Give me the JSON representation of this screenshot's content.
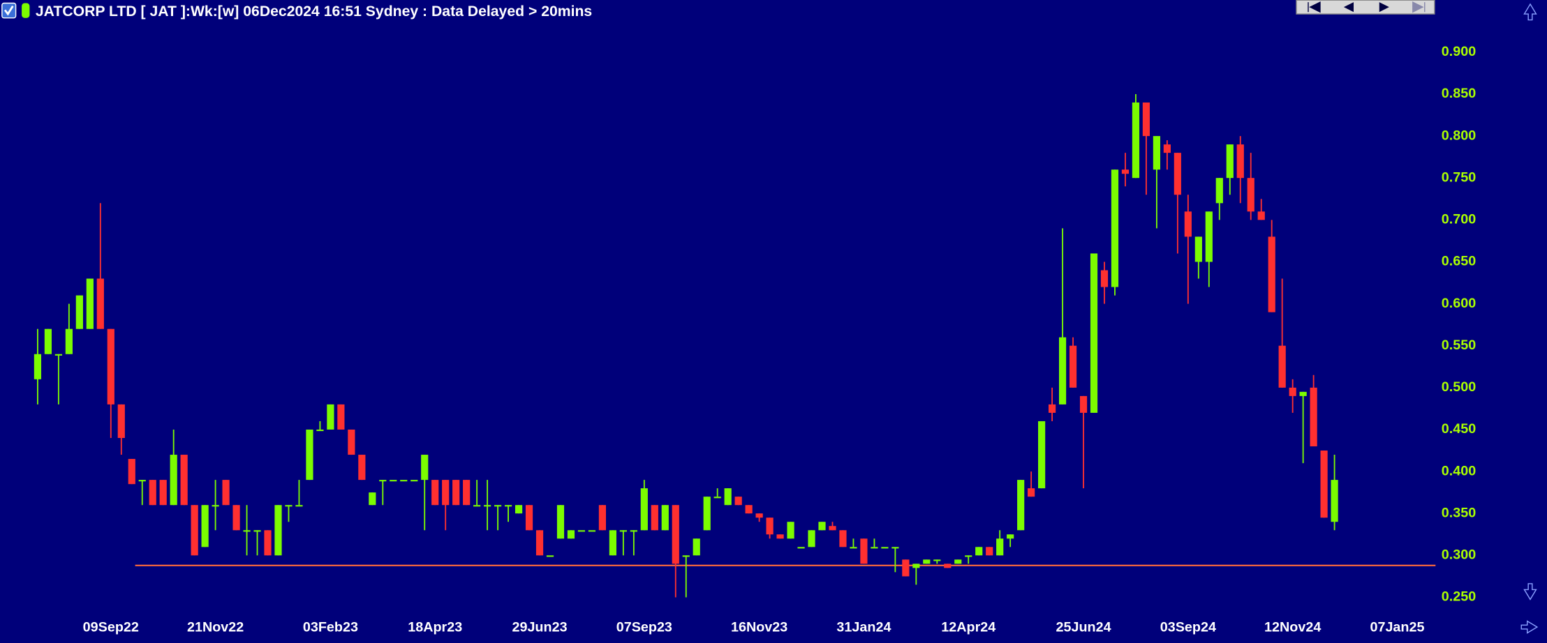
{
  "chart_data": {
    "type": "candlestick",
    "title": "JATCORP LTD [ JAT ]:Wk:[w]  06Dec2024 16:51 Sydney : Data Delayed > 20mins",
    "up_color": "#7cfc00",
    "down_color": "#ff3030",
    "xlim": [
      -3.6,
      133.66
    ],
    "ylim": [
      0.231,
      0.962
    ],
    "xticks": [
      {
        "value": 7,
        "label": "09Sep22"
      },
      {
        "value": 17,
        "label": "21Nov22"
      },
      {
        "value": 28,
        "label": "03Feb23"
      },
      {
        "value": 38,
        "label": "18Apr23"
      },
      {
        "value": 48,
        "label": "29Jun23"
      },
      {
        "value": 58,
        "label": "07Sep23"
      },
      {
        "value": 69,
        "label": "16Nov23"
      },
      {
        "value": 79,
        "label": "31Jan24"
      },
      {
        "value": 89,
        "label": "12Apr24"
      },
      {
        "value": 100,
        "label": "25Jun24"
      },
      {
        "value": 110,
        "label": "03Sep24"
      },
      {
        "value": 120,
        "label": "12Nov24"
      },
      {
        "value": 130,
        "label": "07Jan25"
      }
    ],
    "yticks": [
      {
        "value": 0.25,
        "label": "0.250"
      },
      {
        "value": 0.3,
        "label": "0.300"
      },
      {
        "value": 0.35,
        "label": "0.350"
      },
      {
        "value": 0.4,
        "label": "0.400"
      },
      {
        "value": 0.45,
        "label": "0.450"
      },
      {
        "value": 0.5,
        "label": "0.500"
      },
      {
        "value": 0.55,
        "label": "0.550"
      },
      {
        "value": 0.6,
        "label": "0.600"
      },
      {
        "value": 0.65,
        "label": "0.650"
      },
      {
        "value": 0.7,
        "label": "0.700"
      },
      {
        "value": 0.75,
        "label": "0.750"
      },
      {
        "value": 0.8,
        "label": "0.800"
      },
      {
        "value": 0.85,
        "label": "0.850"
      },
      {
        "value": 0.9,
        "label": "0.900"
      }
    ],
    "hline": {
      "value": 0.288,
      "color": "#ff6a3a"
    },
    "open": [
      0.51,
      0.54,
      0.54,
      0.54,
      0.57,
      0.57,
      0.63,
      0.57,
      0.48,
      0.415,
      0.39,
      0.39,
      0.39,
      0.36,
      0.42,
      0.36,
      0.31,
      0.36,
      0.39,
      0.36,
      0.33,
      0.33,
      0.33,
      0.3,
      0.36,
      0.36,
      0.39,
      0.45,
      0.45,
      0.48,
      0.45,
      0.42,
      0.36,
      0.39,
      0.39,
      0.39,
      0.39,
      0.39,
      0.39,
      0.39,
      0.39,
      0.39,
      0.36,
      0.36,
      0.36,
      0.36,
      0.35,
      0.36,
      0.33,
      0.3,
      0.32,
      0.32,
      0.33,
      0.33,
      0.36,
      0.3,
      0.33,
      0.33,
      0.33,
      0.36,
      0.33,
      0.36,
      0.3,
      0.3,
      0.33,
      0.37,
      0.36,
      0.37,
      0.36,
      0.35,
      0.345,
      0.325,
      0.32,
      0.31,
      0.31,
      0.33,
      0.335,
      0.33,
      0.31,
      0.32,
      0.31,
      0.31,
      0.31,
      0.295,
      0.285,
      0.29,
      0.295,
      0.29,
      0.29,
      0.3,
      0.3,
      0.31,
      0.3,
      0.32,
      0.33,
      0.38,
      0.38,
      0.48,
      0.48,
      0.55,
      0.49,
      0.47,
      0.64,
      0.62,
      0.76,
      0.75,
      0.84,
      0.76,
      0.79,
      0.78,
      0.71,
      0.65,
      0.65,
      0.72,
      0.75,
      0.79,
      0.75,
      0.71,
      0.68,
      0.55,
      0.5,
      0.49,
      0.5,
      0.425,
      0.34
    ],
    "high": [
      0.57,
      0.57,
      0.54,
      0.6,
      0.61,
      0.63,
      0.72,
      0.57,
      0.48,
      0.415,
      0.39,
      0.39,
      0.39,
      0.45,
      0.42,
      0.36,
      0.36,
      0.39,
      0.39,
      0.36,
      0.36,
      0.33,
      0.33,
      0.36,
      0.36,
      0.39,
      0.45,
      0.46,
      0.48,
      0.48,
      0.45,
      0.42,
      0.375,
      0.39,
      0.39,
      0.39,
      0.39,
      0.42,
      0.39,
      0.39,
      0.39,
      0.39,
      0.39,
      0.39,
      0.36,
      0.36,
      0.36,
      0.36,
      0.33,
      0.3,
      0.36,
      0.33,
      0.33,
      0.33,
      0.36,
      0.33,
      0.33,
      0.33,
      0.39,
      0.36,
      0.36,
      0.36,
      0.3,
      0.32,
      0.37,
      0.38,
      0.38,
      0.37,
      0.36,
      0.35,
      0.345,
      0.325,
      0.34,
      0.31,
      0.33,
      0.34,
      0.34,
      0.33,
      0.32,
      0.32,
      0.32,
      0.31,
      0.31,
      0.295,
      0.29,
      0.295,
      0.295,
      0.29,
      0.295,
      0.3,
      0.31,
      0.31,
      0.33,
      0.325,
      0.39,
      0.4,
      0.46,
      0.5,
      0.69,
      0.56,
      0.49,
      0.66,
      0.65,
      0.76,
      0.78,
      0.85,
      0.84,
      0.8,
      0.795,
      0.78,
      0.73,
      0.68,
      0.71,
      0.75,
      0.79,
      0.8,
      0.78,
      0.725,
      0.7,
      0.63,
      0.51,
      0.495,
      0.515,
      0.425,
      0.42
    ],
    "low": [
      0.48,
      0.54,
      0.48,
      0.54,
      0.57,
      0.57,
      0.57,
      0.44,
      0.42,
      0.385,
      0.36,
      0.36,
      0.36,
      0.36,
      0.36,
      0.3,
      0.31,
      0.33,
      0.36,
      0.33,
      0.3,
      0.3,
      0.3,
      0.3,
      0.34,
      0.36,
      0.39,
      0.45,
      0.45,
      0.45,
      0.42,
      0.39,
      0.36,
      0.36,
      0.39,
      0.39,
      0.39,
      0.33,
      0.36,
      0.33,
      0.36,
      0.36,
      0.36,
      0.33,
      0.33,
      0.34,
      0.35,
      0.33,
      0.3,
      0.3,
      0.32,
      0.32,
      0.33,
      0.33,
      0.33,
      0.3,
      0.3,
      0.3,
      0.33,
      0.33,
      0.33,
      0.25,
      0.25,
      0.3,
      0.33,
      0.37,
      0.36,
      0.36,
      0.35,
      0.34,
      0.32,
      0.32,
      0.32,
      0.31,
      0.31,
      0.33,
      0.33,
      0.31,
      0.31,
      0.29,
      0.31,
      0.31,
      0.28,
      0.275,
      0.265,
      0.29,
      0.29,
      0.285,
      0.29,
      0.29,
      0.3,
      0.3,
      0.3,
      0.31,
      0.33,
      0.37,
      0.38,
      0.46,
      0.48,
      0.5,
      0.38,
      0.47,
      0.6,
      0.61,
      0.74,
      0.75,
      0.73,
      0.69,
      0.76,
      0.66,
      0.6,
      0.63,
      0.62,
      0.7,
      0.73,
      0.72,
      0.7,
      0.7,
      0.59,
      0.5,
      0.47,
      0.41,
      0.43,
      0.345,
      0.33
    ],
    "close": [
      0.54,
      0.57,
      0.54,
      0.57,
      0.61,
      0.63,
      0.57,
      0.48,
      0.44,
      0.385,
      0.39,
      0.36,
      0.36,
      0.42,
      0.36,
      0.3,
      0.36,
      0.36,
      0.36,
      0.33,
      0.33,
      0.33,
      0.3,
      0.36,
      0.36,
      0.36,
      0.45,
      0.45,
      0.48,
      0.45,
      0.42,
      0.39,
      0.375,
      0.39,
      0.39,
      0.39,
      0.39,
      0.42,
      0.36,
      0.36,
      0.36,
      0.36,
      0.36,
      0.36,
      0.36,
      0.36,
      0.36,
      0.33,
      0.3,
      0.3,
      0.36,
      0.33,
      0.33,
      0.33,
      0.33,
      0.33,
      0.33,
      0.33,
      0.38,
      0.33,
      0.36,
      0.29,
      0.3,
      0.32,
      0.37,
      0.37,
      0.38,
      0.36,
      0.35,
      0.345,
      0.325,
      0.32,
      0.34,
      0.31,
      0.33,
      0.34,
      0.33,
      0.31,
      0.31,
      0.29,
      0.31,
      0.31,
      0.31,
      0.275,
      0.29,
      0.295,
      0.295,
      0.285,
      0.295,
      0.3,
      0.31,
      0.3,
      0.32,
      0.325,
      0.39,
      0.37,
      0.46,
      0.47,
      0.56,
      0.5,
      0.47,
      0.66,
      0.62,
      0.76,
      0.755,
      0.84,
      0.8,
      0.8,
      0.78,
      0.73,
      0.68,
      0.68,
      0.71,
      0.75,
      0.79,
      0.75,
      0.71,
      0.7,
      0.59,
      0.5,
      0.49,
      0.495,
      0.43,
      0.345,
      0.39
    ]
  }
}
